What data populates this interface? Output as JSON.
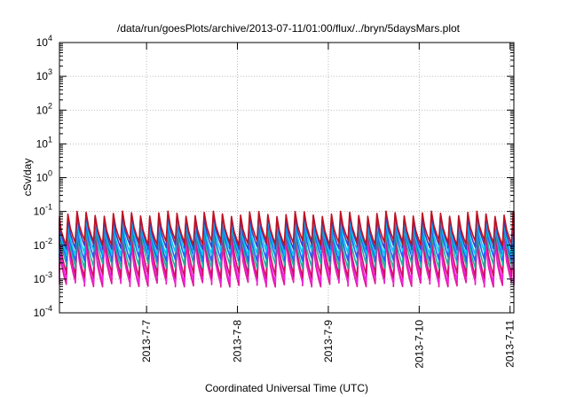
{
  "chart_data": {
    "type": "line",
    "title": "/data/run/goesPlots/archive/2013-07-11/01:00/flux/../bryn/5daysMars.plot",
    "xlabel": "Coordinated Universal Time (UTC)",
    "ylabel": "cSv/day",
    "y_scale": "log",
    "ylim": [
      0.0001,
      10000
    ],
    "xlim": [
      "2013-07-06 01:00",
      "2013-07-11 01:00"
    ],
    "grid": true,
    "y_ticks": [
      {
        "value": 0.0001,
        "mantissa": "10",
        "exp": "-4"
      },
      {
        "value": 0.001,
        "mantissa": "10",
        "exp": "-3"
      },
      {
        "value": 0.01,
        "mantissa": "10",
        "exp": "-2"
      },
      {
        "value": 0.1,
        "mantissa": "10",
        "exp": "-1"
      },
      {
        "value": 1,
        "mantissa": "10",
        "exp": "0"
      },
      {
        "value": 10,
        "mantissa": "10",
        "exp": "1"
      },
      {
        "value": 100,
        "mantissa": "10",
        "exp": "2"
      },
      {
        "value": 1000,
        "mantissa": "10",
        "exp": "3"
      },
      {
        "value": 10000,
        "mantissa": "10",
        "exp": "4"
      }
    ],
    "x_ticks": [
      {
        "value": "2013-07-07",
        "label": "2013-7-7"
      },
      {
        "value": "2013-07-08",
        "label": "2013-7-8"
      },
      {
        "value": "2013-07-09",
        "label": "2013-7-9"
      },
      {
        "value": "2013-07-10",
        "label": "2013-7-10"
      },
      {
        "value": "2013-07-11",
        "label": "2013-7-11"
      }
    ],
    "cycles_per_day": 10,
    "series": [
      {
        "color": "#e0189a",
        "peak": 0.012,
        "trough": 0.0007
      },
      {
        "color": "#f020e8",
        "peak": 0.015,
        "trough": 0.0009
      },
      {
        "color": "#d01060",
        "peak": 0.022,
        "trough": 0.0013
      },
      {
        "color": "#20b0a0",
        "peak": 0.03,
        "trough": 0.0025
      },
      {
        "color": "#2060ff",
        "peak": 0.045,
        "trough": 0.004
      },
      {
        "color": "#00c8f0",
        "peak": 0.055,
        "trough": 0.006
      },
      {
        "color": "#3a40c8",
        "peak": 0.07,
        "trough": 0.009
      },
      {
        "color": "#c01020",
        "peak": 0.085,
        "trough": 0.012
      }
    ]
  }
}
